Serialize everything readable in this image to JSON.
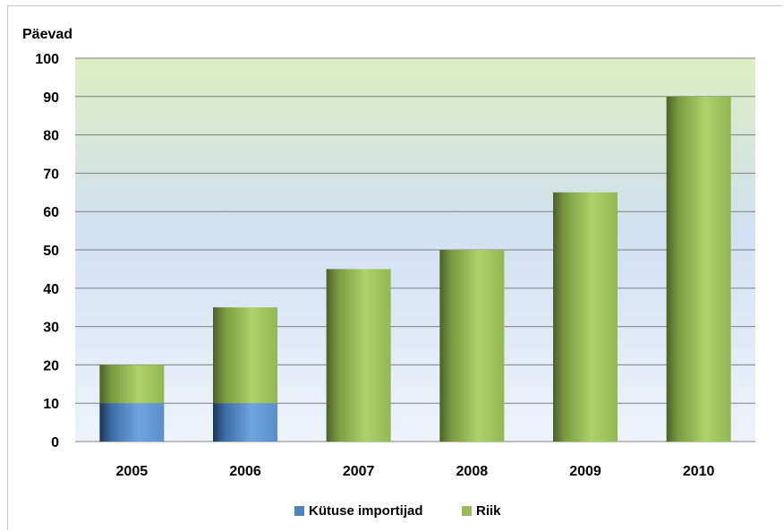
{
  "chart_data": {
    "type": "bar",
    "stacked": true,
    "ylabel": "Päevad",
    "ylim": [
      0,
      100
    ],
    "yticks": [
      "0",
      "10",
      "20",
      "30",
      "40",
      "50",
      "60",
      "70",
      "80",
      "90",
      "100"
    ],
    "categories": [
      "2005",
      "2006",
      "2007",
      "2008",
      "2009",
      "2010"
    ],
    "series": [
      {
        "name": "Kütuse importijad",
        "color": "#4f81bd",
        "values": [
          10,
          10,
          0,
          0,
          0,
          0
        ]
      },
      {
        "name": "Riik",
        "color": "#9bbb59",
        "values": [
          10,
          25,
          45,
          50,
          65,
          90
        ]
      }
    ],
    "grid": true,
    "legend_position": "bottom"
  }
}
